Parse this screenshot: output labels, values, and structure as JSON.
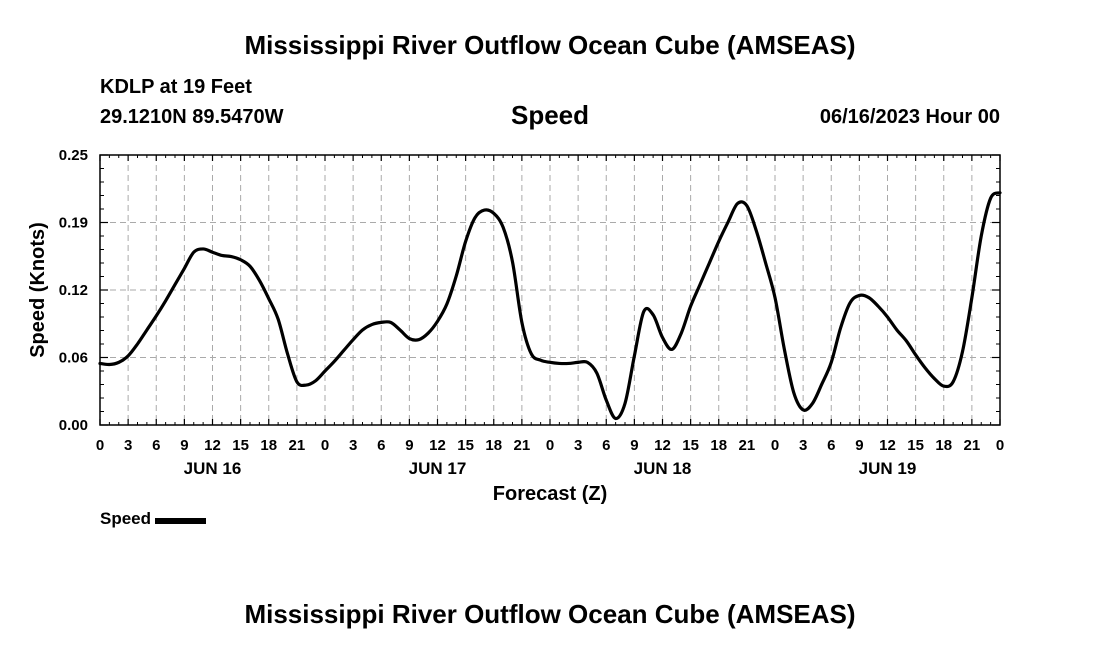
{
  "page": {
    "title": "Mississippi River Outflow Ocean Cube (AMSEAS)",
    "footer_title": "Mississippi River Outflow Ocean Cube (AMSEAS)",
    "station": "KDLP at 19 Feet",
    "coordinates": "29.1210N  89.5470W",
    "datetime": "06/16/2023 Hour 00"
  },
  "chart_data": {
    "type": "line",
    "title": "Speed",
    "xlabel": "Forecast (Z)",
    "ylabel": "Speed (Knots)",
    "x_unit": "forecast hour",
    "xlim": [
      0,
      96
    ],
    "ylim": [
      0,
      0.25
    ],
    "yticks": [
      "0.00",
      "0.06",
      "0.12",
      "0.19",
      "0.25"
    ],
    "ytick_values": [
      0,
      0.0625,
      0.125,
      0.1875,
      0.25
    ],
    "xticks": [
      "0",
      "3",
      "6",
      "9",
      "12",
      "15",
      "18",
      "21",
      "0",
      "3",
      "6",
      "9",
      "12",
      "15",
      "18",
      "21",
      "0",
      "3",
      "6",
      "9",
      "12",
      "15",
      "18",
      "21",
      "0",
      "3",
      "6",
      "9",
      "12",
      "15",
      "18",
      "21",
      "0"
    ],
    "xtick_values": [
      0,
      3,
      6,
      9,
      12,
      15,
      18,
      21,
      24,
      27,
      30,
      33,
      36,
      39,
      42,
      45,
      48,
      51,
      54,
      57,
      60,
      63,
      66,
      69,
      72,
      75,
      78,
      81,
      84,
      87,
      90,
      93,
      96
    ],
    "day_labels": [
      {
        "label": "JUN 16",
        "x": 12
      },
      {
        "label": "JUN 17",
        "x": 36
      },
      {
        "label": "JUN 18",
        "x": 60
      },
      {
        "label": "JUN 19",
        "x": 84
      }
    ],
    "grid": true,
    "legend": "bottom-left",
    "series": [
      {
        "name": "Speed",
        "color": "#000000",
        "x": [
          0,
          1,
          2,
          3,
          4,
          5,
          6,
          7,
          8,
          9,
          10,
          11,
          12,
          13,
          14,
          15,
          16,
          17,
          18,
          19,
          20,
          21,
          22,
          23,
          24,
          25,
          26,
          27,
          28,
          29,
          30,
          31,
          32,
          33,
          34,
          35,
          36,
          37,
          38,
          39,
          40,
          41,
          42,
          43,
          44,
          45,
          46,
          47,
          48,
          49,
          50,
          51,
          52,
          53,
          54,
          55,
          56,
          57,
          58,
          59,
          60,
          61,
          62,
          63,
          64,
          65,
          66,
          67,
          68,
          69,
          70,
          71,
          72,
          73,
          74,
          75,
          76,
          77,
          78,
          79,
          80,
          81,
          82,
          83,
          84,
          85,
          86,
          87,
          88,
          89,
          90,
          91,
          92,
          93,
          94,
          95,
          96
        ],
        "values": [
          0.057,
          0.056,
          0.058,
          0.064,
          0.075,
          0.088,
          0.101,
          0.115,
          0.13,
          0.145,
          0.16,
          0.163,
          0.16,
          0.157,
          0.156,
          0.153,
          0.147,
          0.134,
          0.117,
          0.098,
          0.066,
          0.04,
          0.037,
          0.041,
          0.05,
          0.059,
          0.069,
          0.079,
          0.088,
          0.093,
          0.095,
          0.095,
          0.088,
          0.08,
          0.079,
          0.085,
          0.096,
          0.112,
          0.138,
          0.17,
          0.192,
          0.199,
          0.196,
          0.183,
          0.151,
          0.095,
          0.066,
          0.06,
          0.058,
          0.057,
          0.057,
          0.058,
          0.058,
          0.048,
          0.023,
          0.006,
          0.02,
          0.064,
          0.105,
          0.102,
          0.081,
          0.07,
          0.085,
          0.11,
          0.13,
          0.15,
          0.17,
          0.188,
          0.205,
          0.203,
          0.18,
          0.15,
          0.118,
          0.07,
          0.03,
          0.014,
          0.02,
          0.038,
          0.058,
          0.09,
          0.113,
          0.12,
          0.118,
          0.11,
          0.1,
          0.088,
          0.078,
          0.065,
          0.053,
          0.043,
          0.036,
          0.04,
          0.068,
          0.118,
          0.175,
          0.21,
          0.215
        ]
      }
    ]
  }
}
